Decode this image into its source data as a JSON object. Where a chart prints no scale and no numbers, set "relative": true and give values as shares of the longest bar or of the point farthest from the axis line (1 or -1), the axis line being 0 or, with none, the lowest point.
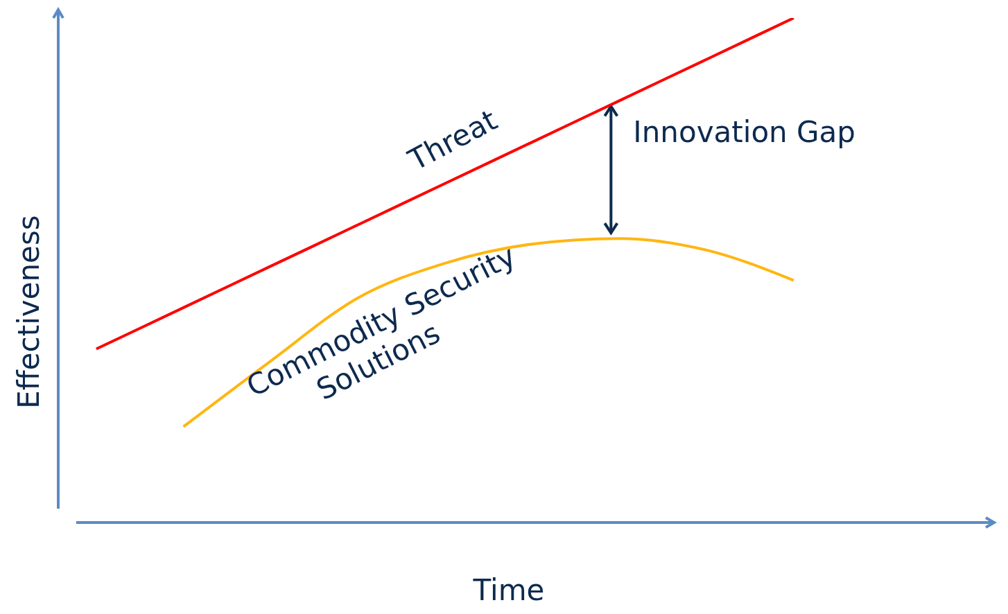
{
  "chart_data": {
    "type": "line",
    "relative": true,
    "xlabel": "Time",
    "ylabel": "Effectiveness",
    "categories": [
      null,
      null,
      null,
      null,
      null,
      null,
      null,
      null,
      null
    ],
    "series": [
      {
        "name": "Threat",
        "color": "#ff0000",
        "values": [
          0.344,
          0.426,
          0.508,
          0.59,
          0.672,
          0.754,
          0.836,
          0.918,
          1.0
        ]
      },
      {
        "name": "Commodity Security Solutions",
        "color": "#ffb612",
        "values": [
          null,
          0.19,
          0.32,
          0.445,
          0.514,
          0.552,
          0.563,
          0.54,
          0.48
        ]
      }
    ],
    "annotations": [
      "Innovation Gap"
    ],
    "legend": false,
    "grid": false,
    "marker": "none",
    "line_style": "solid"
  }
}
